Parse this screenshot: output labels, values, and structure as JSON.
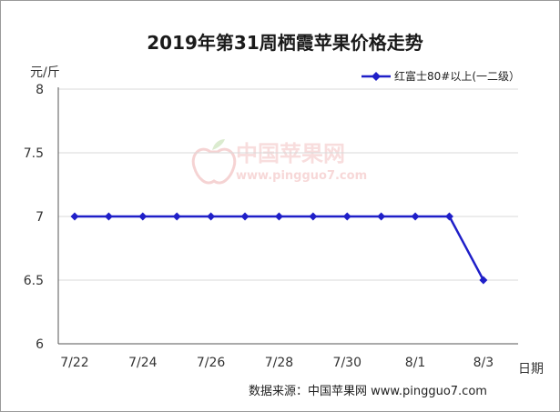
{
  "chart_data": {
    "type": "line",
    "title": "2019年第31周栖霞苹果价格走势",
    "ylabel": "元/斤",
    "xlabel": "日期",
    "ylim": [
      6,
      8
    ],
    "yticks": [
      "6",
      "6.5",
      "7",
      "7.5",
      "8"
    ],
    "x_tick_labels": [
      "7/22",
      "7/24",
      "7/26",
      "7/28",
      "7/30",
      "8/1",
      "8/3"
    ],
    "x": [
      "7/22",
      "7/23",
      "7/24",
      "7/25",
      "7/26",
      "7/27",
      "7/28",
      "7/29",
      "7/30",
      "7/31",
      "8/1",
      "8/2",
      "8/3"
    ],
    "series": [
      {
        "name": "红富士80#以上(一二级）",
        "color": "#1f1fc8",
        "values": [
          7,
          7,
          7,
          7,
          7,
          7,
          7,
          7,
          7,
          7,
          7,
          7,
          6.5
        ]
      }
    ],
    "grid": "horizontal",
    "legend_position": "top-right"
  },
  "watermark": {
    "cn": "中国苹果网",
    "url": "www.pingguo7.com"
  },
  "source": "数据来源：中国苹果网 www.pingguo7.com"
}
